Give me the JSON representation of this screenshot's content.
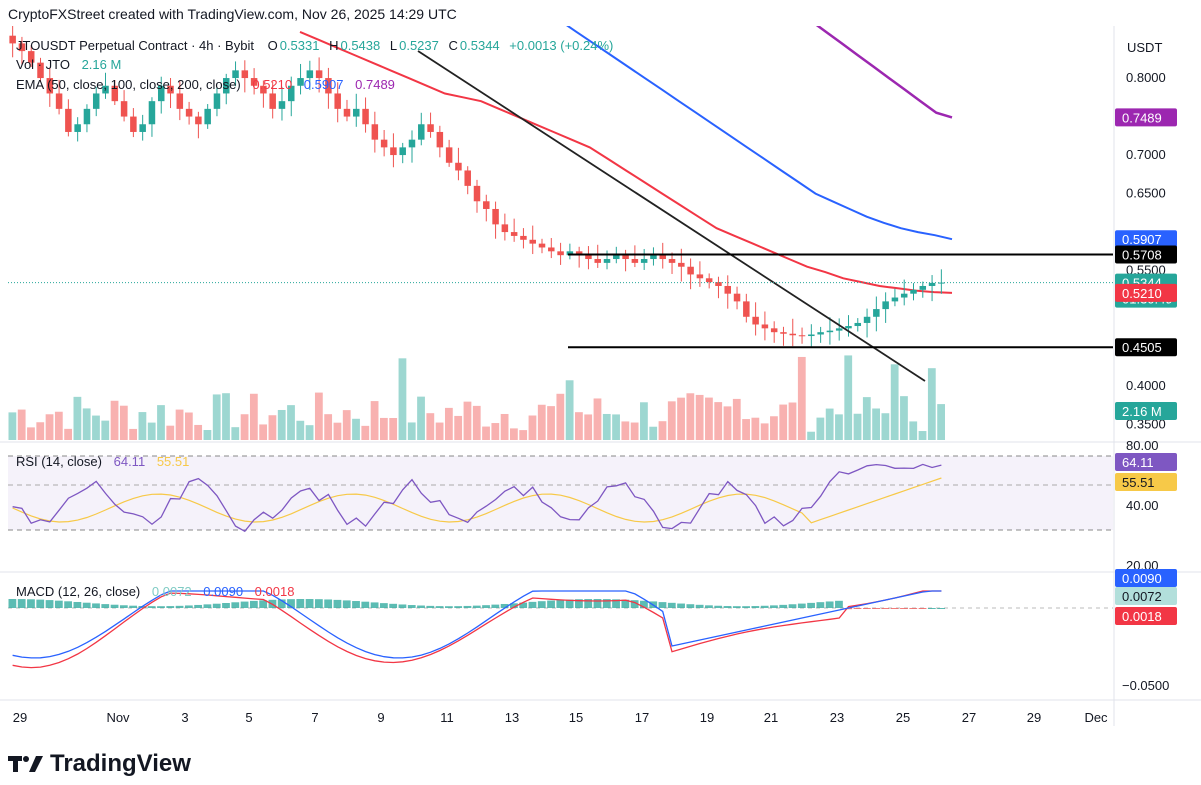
{
  "credit": "CryptoFXStreet created with TradingView.com, Nov 26, 2025 14:29 UTC",
  "logo_text": "TradingView",
  "colors": {
    "up": "#26a69a",
    "down": "#ef5350",
    "ema50": "#f23645",
    "ema100": "#2962ff",
    "ema200": "#9c27b0",
    "rsi": "#7e57c2",
    "rsi_ma": "#f7c948",
    "macd": "#2962ff",
    "signal": "#f23645",
    "trendline": "#222222",
    "level": "#000000"
  },
  "legend": {
    "symbol": "JTOUSDT Perpetual Contract · 4h · Bybit",
    "o_label": "O",
    "o": "0.5331",
    "h_label": "H",
    "h": "0.5438",
    "l_label": "L",
    "l": "0.5237",
    "c_label": "C",
    "c": "0.5344",
    "change": "+0.0013 (+0.24%)",
    "vol_label": "Vol · JTO",
    "vol": "2.16 M",
    "ema_label": "EMA (50, close, 100, close, 200, close)",
    "ema50": "0.5210",
    "ema100": "0.5907",
    "ema200": "0.7489",
    "rsi_label": "RSI (14, close)",
    "rsi": "64.11",
    "rsi_ma": "55.51",
    "macd_label": "MACD (12, 26, close)",
    "macd_hist": "0.0072",
    "macd": "0.0090",
    "macd_signal": "0.0018"
  },
  "chart_data": {
    "type": "candlestick",
    "title": "JTOUSDT Perpetual Contract · 4h · Bybit",
    "currency": "USDT",
    "price_axis_ticks": [
      "0.8000",
      "0.7000",
      "0.6500",
      "0.5500",
      "0.4000",
      "0.3500"
    ],
    "price_tags": [
      {
        "label": "0.7489",
        "value": 0.7489,
        "color": "#9c27b0"
      },
      {
        "label": "0.5907",
        "value": 0.5907,
        "color": "#2962ff"
      },
      {
        "label": "0.5708",
        "value": 0.5708,
        "color": "#000000"
      },
      {
        "label": "0.5344",
        "value": 0.5344,
        "color": "#26a69a",
        "sub": "01:30:49"
      },
      {
        "label": "0.5210",
        "value": 0.521,
        "color": "#f23645"
      },
      {
        "label": "0.4505",
        "value": 0.4505,
        "color": "#000000"
      },
      {
        "label": "2.16 M",
        "value": 0.38,
        "color": "#26a69a"
      }
    ],
    "horizontal_levels": [
      0.5708,
      0.4505
    ],
    "x_ticks": [
      "29",
      "Nov",
      "3",
      "5",
      "7",
      "9",
      "11",
      "13",
      "15",
      "17",
      "19",
      "21",
      "23",
      "25",
      "27",
      "29",
      "Dec"
    ],
    "close_path": [
      0.845,
      0.835,
      0.82,
      0.8,
      0.78,
      0.76,
      0.73,
      0.74,
      0.76,
      0.78,
      0.79,
      0.77,
      0.75,
      0.73,
      0.74,
      0.77,
      0.79,
      0.78,
      0.76,
      0.75,
      0.74,
      0.76,
      0.78,
      0.8,
      0.81,
      0.8,
      0.79,
      0.78,
      0.76,
      0.77,
      0.79,
      0.8,
      0.81,
      0.8,
      0.78,
      0.76,
      0.75,
      0.76,
      0.74,
      0.72,
      0.71,
      0.7,
      0.71,
      0.72,
      0.74,
      0.73,
      0.71,
      0.69,
      0.68,
      0.66,
      0.64,
      0.63,
      0.61,
      0.6,
      0.595,
      0.59,
      0.585,
      0.58,
      0.575,
      0.57,
      0.575,
      0.57,
      0.565,
      0.56,
      0.565,
      0.57,
      0.565,
      0.56,
      0.565,
      0.57,
      0.565,
      0.56,
      0.555,
      0.545,
      0.54,
      0.535,
      0.53,
      0.52,
      0.51,
      0.49,
      0.48,
      0.475,
      0.47,
      0.468,
      0.466,
      0.465,
      0.467,
      0.47,
      0.472,
      0.475,
      0.478,
      0.482,
      0.49,
      0.5,
      0.51,
      0.515,
      0.52,
      0.525,
      0.53,
      0.534,
      0.5344
    ],
    "ema50_path": [
      0.86,
      0.85,
      0.84,
      0.83,
      0.82,
      0.81,
      0.8,
      0.79,
      0.78,
      0.775,
      0.77,
      0.76,
      0.75,
      0.74,
      0.73,
      0.72,
      0.71,
      0.695,
      0.68,
      0.665,
      0.65,
      0.635,
      0.62,
      0.605,
      0.595,
      0.585,
      0.575,
      0.565,
      0.555,
      0.548,
      0.54,
      0.535,
      0.53,
      0.527,
      0.524,
      0.522,
      0.521
    ],
    "ema100_path": [
      0.98,
      0.965,
      0.95,
      0.935,
      0.92,
      0.905,
      0.89,
      0.875,
      0.86,
      0.845,
      0.83,
      0.815,
      0.8,
      0.785,
      0.77,
      0.755,
      0.74,
      0.725,
      0.71,
      0.695,
      0.68,
      0.665,
      0.65,
      0.64,
      0.63,
      0.62,
      0.612,
      0.605,
      0.6,
      0.596,
      0.5907
    ],
    "ema200_path": [
      0.98,
      0.965,
      0.95,
      0.935,
      0.92,
      0.905,
      0.89,
      0.875,
      0.86,
      0.845,
      0.83,
      0.815,
      0.8,
      0.785,
      0.77,
      0.755,
      0.7489
    ],
    "rsi_ticks": [
      "80.00",
      "40.00",
      "20.00"
    ],
    "macd_ticks": [
      "−0.0500"
    ]
  }
}
